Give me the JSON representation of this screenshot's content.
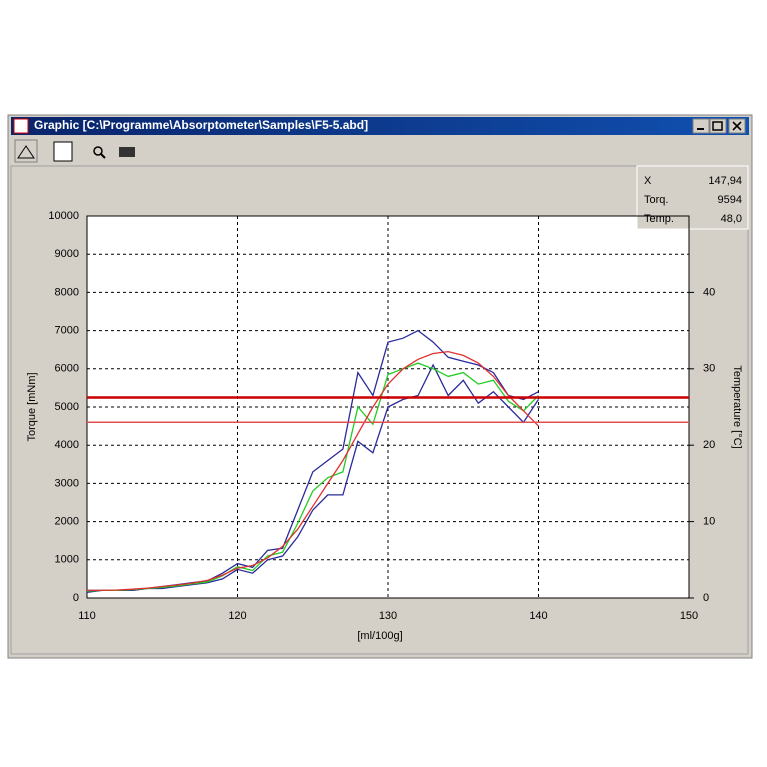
{
  "window": {
    "title": "Graphic  [C:\\Programme\\Absorptometer\\Samples\\F5-5.abd]"
  },
  "readout": {
    "rows": [
      [
        "X",
        "147,94"
      ],
      [
        "Torq.",
        "9594"
      ],
      [
        "Temp.",
        "48,0"
      ]
    ]
  },
  "chart_data": {
    "type": "line",
    "x_label": "[ml/100g]",
    "y_label": "Torque [mNm]",
    "y2_label": "Temperature [°C]",
    "x": [
      110,
      111,
      112,
      113,
      114,
      115,
      116,
      117,
      118,
      119,
      120,
      121,
      122,
      123,
      124,
      125,
      126,
      127,
      128,
      129,
      130,
      131,
      132,
      133,
      134,
      135,
      136,
      137,
      138,
      139,
      140
    ],
    "series": [
      {
        "color": "#2a2a9a",
        "values": [
          150,
          200,
          200,
          200,
          250,
          300,
          350,
          400,
          450,
          650,
          900,
          800,
          1250,
          1300,
          2300,
          3300,
          3600,
          3900,
          5900,
          5300,
          6700,
          6800,
          7000,
          6700,
          6300,
          6200,
          6100,
          5900,
          5300,
          5200,
          5400
        ]
      },
      {
        "color": "#2a2a9a",
        "values": [
          200,
          200,
          200,
          200,
          250,
          250,
          300,
          350,
          400,
          500,
          750,
          650,
          1000,
          1100,
          1600,
          2300,
          2700,
          2700,
          4100,
          3800,
          5000,
          5200,
          5300,
          6100,
          5300,
          5700,
          5100,
          5400,
          5000,
          4600,
          5200
        ]
      },
      {
        "color": "#22cc22",
        "values": [
          180,
          200,
          200,
          220,
          250,
          280,
          320,
          370,
          420,
          580,
          820,
          720,
          1100,
          1200,
          1950,
          2800,
          3150,
          3300,
          5000,
          4550,
          5850,
          6000,
          6150,
          6000,
          5800,
          5900,
          5600,
          5700,
          5150,
          4900,
          5300
        ]
      },
      {
        "color": "#e03030",
        "values": [
          200,
          200,
          210,
          230,
          260,
          300,
          340,
          390,
          460,
          600,
          780,
          850,
          1050,
          1350,
          1800,
          2400,
          3000,
          3600,
          4300,
          5000,
          5600,
          6000,
          6250,
          6400,
          6450,
          6350,
          6150,
          5800,
          5300,
          4900,
          4500
        ]
      }
    ],
    "hlines": [
      {
        "value": 5250,
        "color": "#cc0000"
      },
      {
        "value": 4600,
        "color": "#e05050"
      }
    ],
    "xlim": [
      110,
      150
    ],
    "xticks": [
      110,
      120,
      130,
      140,
      150
    ],
    "ylim": [
      0,
      10000
    ],
    "yticks": [
      0,
      1000,
      2000,
      3000,
      4000,
      5000,
      6000,
      7000,
      8000,
      9000,
      10000
    ],
    "y2lim": [
      0,
      50
    ],
    "y2ticks": [
      0,
      10,
      20,
      30,
      40
    ],
    "grid": true
  }
}
